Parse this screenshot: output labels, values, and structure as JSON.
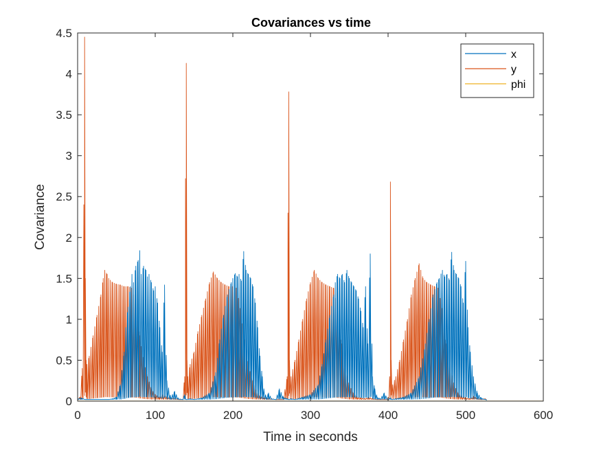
{
  "chart_data": {
    "type": "line",
    "title": "Covariances vs time",
    "xlabel": "Time in seconds",
    "ylabel": "Covariance",
    "xlim": [
      0,
      600
    ],
    "ylim": [
      0,
      4.5
    ],
    "xticks": [
      0,
      100,
      200,
      300,
      400,
      500,
      600
    ],
    "xtick_labels": [
      "0",
      "100",
      "200",
      "300",
      "400",
      "500",
      "600"
    ],
    "yticks": [
      0,
      0.5,
      1,
      1.5,
      2,
      2.5,
      3,
      3.5,
      4,
      4.5
    ],
    "ytick_labels": [
      "0",
      "0.5",
      "1",
      "1.5",
      "2",
      "2.5",
      "3",
      "3.5",
      "4",
      "4.5"
    ],
    "grid": false,
    "legend": {
      "position": "top-right",
      "entries": [
        "x",
        "y",
        "phi"
      ]
    },
    "series": [
      {
        "name": "x",
        "color": "#0072BD",
        "x": [
          0,
          5,
          10,
          20,
          30,
          40,
          45,
          50,
          55,
          60,
          62,
          65,
          68,
          70,
          72,
          75,
          78,
          80,
          82,
          85,
          88,
          90,
          92,
          95,
          98,
          100,
          103,
          106,
          109,
          112,
          115,
          120,
          125,
          130,
          135,
          138,
          140,
          145,
          150,
          160,
          170,
          178,
          183,
          188,
          193,
          198,
          200,
          203,
          206,
          208,
          211,
          214,
          217,
          220,
          223,
          226,
          229,
          232,
          235,
          238,
          240,
          243,
          246,
          250,
          255,
          260,
          265,
          270,
          272,
          275,
          280,
          290,
          300,
          310,
          315,
          320,
          325,
          330,
          332,
          335,
          338,
          341,
          344,
          347,
          350,
          353,
          356,
          359,
          362,
          365,
          368,
          371,
          374,
          377,
          380,
          383,
          386,
          390,
          395,
          400,
          403,
          405,
          410,
          420,
          430,
          440,
          448,
          453,
          458,
          463,
          466,
          470,
          473,
          476,
          479,
          482,
          485,
          488,
          491,
          494,
          497,
          500,
          503,
          506,
          510,
          515,
          520,
          525,
          527
        ],
        "y": [
          0.03,
          0.04,
          0.02,
          0.02,
          0.02,
          0.02,
          0.03,
          0.05,
          0.2,
          0.6,
          0.9,
          1.15,
          1.4,
          1.55,
          1.45,
          1.65,
          1.72,
          1.84,
          1.55,
          1.65,
          1.6,
          1.52,
          1.55,
          1.45,
          1.35,
          1.4,
          1.2,
          0.9,
          0.6,
          1.42,
          0.25,
          0.05,
          0.12,
          0.03,
          0.02,
          0.08,
          0.02,
          0.03,
          0.02,
          0.04,
          0.1,
          0.35,
          0.75,
          1.05,
          1.3,
          1.45,
          1.5,
          1.56,
          1.52,
          1.55,
          1.47,
          1.83,
          1.6,
          1.55,
          1.5,
          1.4,
          1.2,
          0.9,
          0.55,
          0.3,
          0.15,
          0.05,
          0.1,
          0.03,
          0.02,
          0.15,
          0.05,
          0.03,
          0.02,
          0.03,
          0.02,
          0.05,
          0.08,
          0.2,
          0.45,
          0.75,
          1.05,
          1.3,
          1.45,
          1.55,
          1.5,
          1.55,
          1.45,
          1.6,
          1.5,
          1.45,
          1.4,
          1.35,
          1.25,
          1.1,
          0.9,
          1.4,
          0.7,
          1.8,
          0.3,
          0.15,
          0.05,
          0.03,
          0.1,
          0.02,
          0.04,
          0.02,
          0.03,
          0.05,
          0.1,
          0.3,
          0.7,
          1.0,
          1.3,
          1.45,
          1.5,
          1.6,
          1.52,
          1.55,
          1.48,
          1.82,
          1.6,
          1.55,
          1.5,
          1.4,
          1.2,
          1.71,
          0.9,
          0.6,
          0.3,
          0.1,
          0.04,
          0.02,
          0.01
        ]
      },
      {
        "name": "y",
        "color": "#D95319",
        "x": [
          0,
          3,
          6,
          8,
          9,
          10,
          11,
          12,
          15,
          20,
          25,
          30,
          33,
          35,
          38,
          40,
          45,
          50,
          55,
          60,
          65,
          70,
          75,
          80,
          85,
          90,
          95,
          100,
          105,
          110,
          115,
          120,
          125,
          130,
          135,
          138,
          139,
          140,
          141,
          142,
          145,
          150,
          155,
          160,
          165,
          170,
          175,
          180,
          185,
          190,
          195,
          200,
          205,
          210,
          215,
          220,
          225,
          230,
          235,
          240,
          245,
          250,
          255,
          260,
          265,
          270,
          271,
          272,
          273,
          275,
          280,
          285,
          290,
          295,
          300,
          305,
          310,
          315,
          320,
          325,
          330,
          335,
          340,
          345,
          350,
          355,
          360,
          365,
          370,
          375,
          380,
          385,
          390,
          395,
          400,
          402,
          403,
          404,
          406,
          410,
          415,
          420,
          425,
          430,
          435,
          440,
          445,
          450,
          455,
          460,
          465,
          470,
          475,
          480,
          485,
          490,
          495,
          500,
          505,
          510,
          515,
          520,
          525,
          527
        ],
        "y": [
          0.02,
          0.05,
          0.4,
          2.4,
          4.45,
          1.5,
          0.5,
          0.45,
          0.55,
          0.8,
          1.05,
          1.3,
          1.5,
          1.6,
          1.55,
          1.5,
          1.45,
          1.43,
          1.42,
          1.4,
          1.4,
          1.38,
          1.2,
          0.8,
          0.5,
          0.3,
          0.15,
          0.08,
          0.05,
          0.08,
          0.05,
          0.03,
          0.03,
          0.02,
          0.02,
          0.3,
          2.72,
          4.13,
          0.5,
          0.3,
          0.45,
          0.6,
          0.85,
          1.05,
          1.25,
          1.45,
          1.58,
          1.5,
          1.45,
          1.42,
          1.4,
          1.4,
          1.38,
          1.1,
          0.75,
          0.45,
          0.25,
          0.12,
          0.06,
          0.04,
          0.03,
          0.03,
          0.02,
          0.02,
          0.02,
          0.3,
          2.3,
          3.78,
          0.5,
          0.3,
          0.5,
          0.75,
          1.0,
          1.25,
          1.45,
          1.6,
          1.5,
          1.45,
          1.42,
          1.4,
          1.38,
          1.1,
          0.7,
          0.4,
          0.2,
          0.1,
          0.05,
          0.04,
          0.03,
          0.05,
          0.03,
          0.02,
          0.02,
          0.02,
          0.02,
          0.3,
          2.68,
          0.5,
          0.2,
          0.3,
          0.5,
          0.75,
          1.0,
          1.3,
          1.5,
          1.68,
          1.5,
          1.45,
          1.42,
          1.4,
          1.38,
          1.1,
          0.7,
          0.4,
          0.2,
          0.1,
          0.06,
          0.04,
          0.03,
          0.06,
          0.03,
          0.02,
          0.03,
          0.02
        ]
      },
      {
        "name": "phi",
        "color": "#EDB120",
        "x": [
          0,
          600
        ],
        "y": [
          0.001,
          0.001
        ]
      }
    ]
  }
}
